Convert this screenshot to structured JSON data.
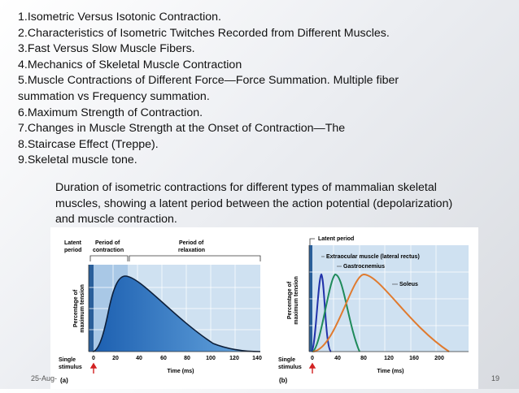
{
  "slide": {
    "items": [
      "1.Isometric Versus Isotonic Contraction.",
      "2.Characteristics of Isometric Twitches Recorded from Different Muscles.",
      "3.Fast Versus Slow Muscle Fibers.",
      "4.Mechanics of Skeletal Muscle Contraction",
      "5.Muscle Contractions of Different Force—Force Summation. Multiple fiber",
      "summation vs Frequency summation.",
      "6.Maximum Strength of Contraction.",
      "7.Changes in Muscle Strength at the Onset of Contraction—The",
      "8.Staircase Effect (Treppe).",
      "9.Skeletal muscle tone."
    ],
    "caption": "Duration of isometric contractions for different types of mammalian skeletal muscles, showing a latent period between the action potential (depolarization) and muscle contraction.",
    "footer_date": "25-Aug-",
    "page_number": "19"
  },
  "figure": {
    "ylabel": "Percentage of maximum tension",
    "xlabel": "Time (ms)",
    "stimulus_label": "Single stimulus",
    "panel_a": {
      "tag": "(a)",
      "phase_labels": {
        "latent": "Latent period",
        "contraction": "Period of contraction",
        "relaxation": "Period of relaxation"
      },
      "ticks": [
        "0",
        "20",
        "40",
        "60",
        "80",
        "100",
        "120",
        "140"
      ]
    },
    "panel_b": {
      "tag": "(b)",
      "latent_label": "Latent period",
      "series_labels": {
        "extraocular": "Extraocular muscle (lateral rectus)",
        "gastrocnemius": "Gastrocnemius",
        "soleus": "Soleus"
      },
      "ticks": [
        "0",
        "40",
        "80",
        "120",
        "160",
        "200"
      ]
    },
    "colors": {
      "panel_bg": "#cfe1f1",
      "grid": "#ffffff",
      "twitch_fill": "#2f7fc8",
      "extraocular": "#2233aa",
      "gastrocnemius": "#1f8a5a",
      "soleus": "#e07a2e",
      "stimulus": "#d22222"
    }
  }
}
